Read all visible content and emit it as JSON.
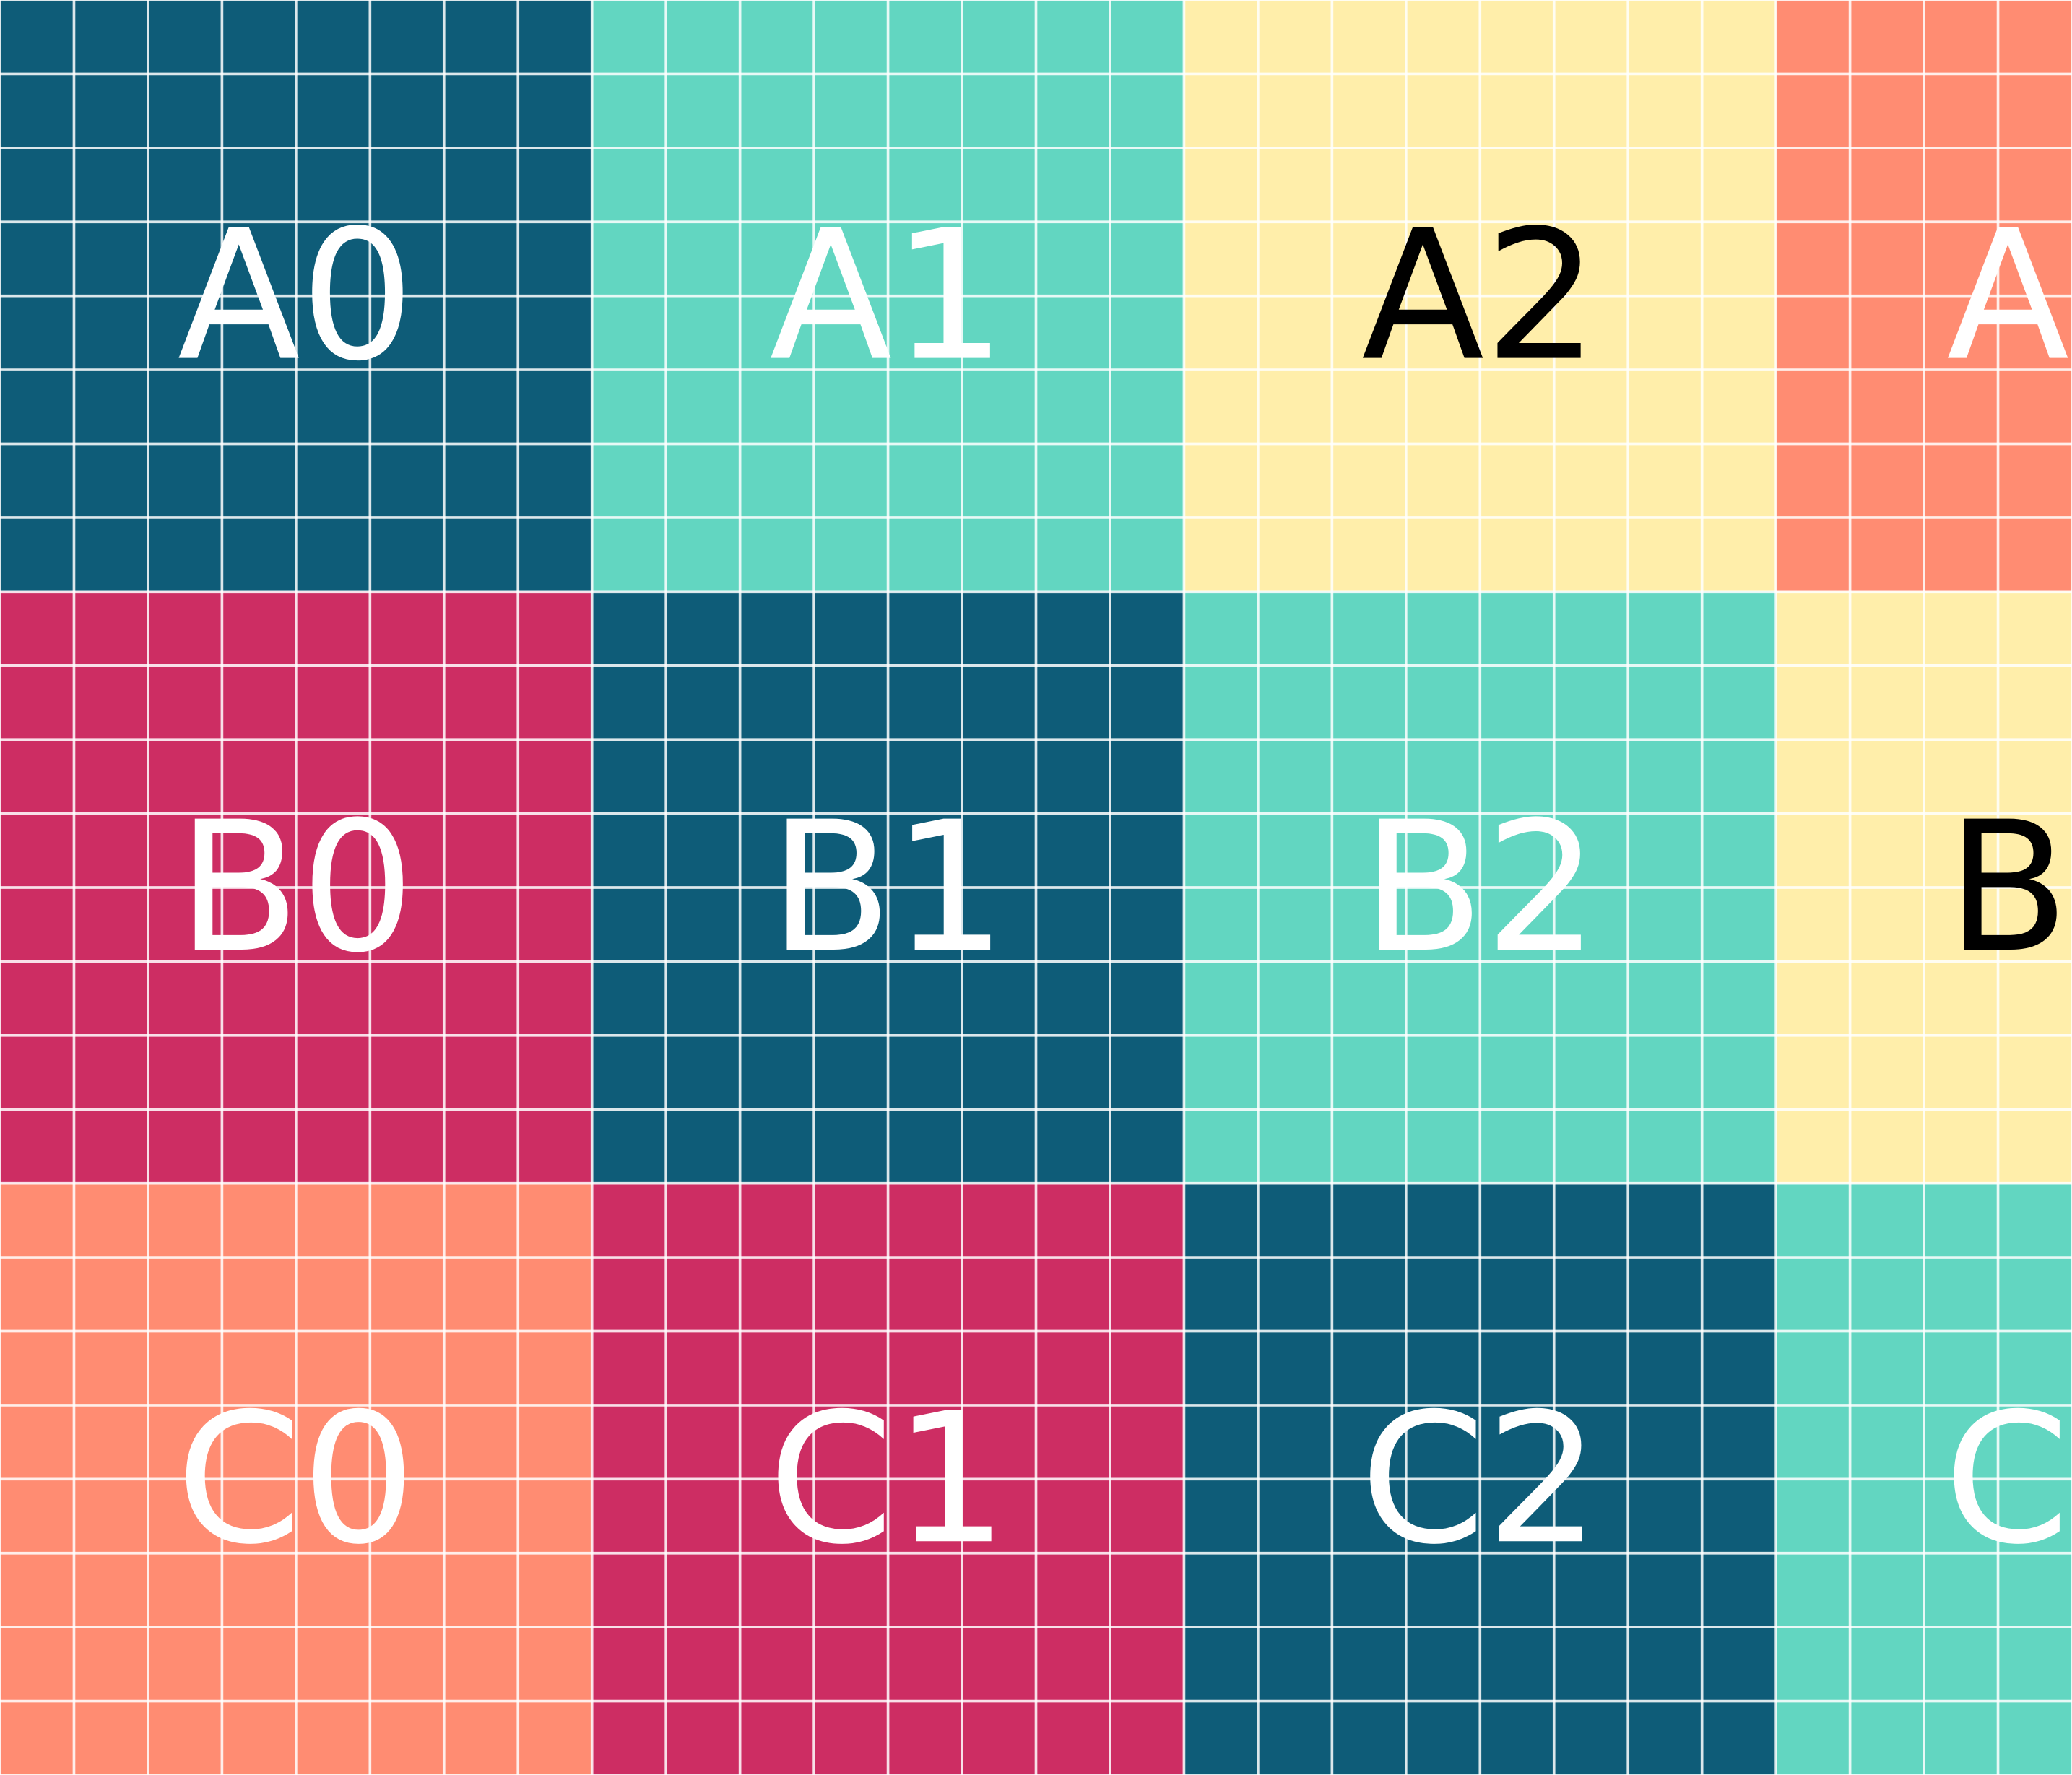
{
  "grid": {
    "rows": [
      [
        {
          "label": "A0",
          "color": "#0e5c78",
          "text_color": "#ffffff"
        },
        {
          "label": "A1",
          "color": "#62d6c1",
          "text_color": "#ffffff"
        },
        {
          "label": "A2",
          "color": "#ffeeaa",
          "text_color": "#000000"
        },
        {
          "label": "A",
          "color": "#ff8c72",
          "text_color": "#ffffff"
        }
      ],
      [
        {
          "label": "B0",
          "color": "#cd2d63",
          "text_color": "#ffffff"
        },
        {
          "label": "B1",
          "color": "#0e5c78",
          "text_color": "#ffffff"
        },
        {
          "label": "B2",
          "color": "#62d6c1",
          "text_color": "#ffffff"
        },
        {
          "label": "B",
          "color": "#ffeeaa",
          "text_color": "#000000"
        }
      ],
      [
        {
          "label": "C0",
          "color": "#ff8c72",
          "text_color": "#ffffff"
        },
        {
          "label": "C1",
          "color": "#cd2d63",
          "text_color": "#ffffff"
        },
        {
          "label": "C2",
          "color": "#0e5c78",
          "text_color": "#ffffff"
        },
        {
          "label": "C",
          "color": "#62d6c1",
          "text_color": "#ffffff"
        }
      ]
    ]
  }
}
